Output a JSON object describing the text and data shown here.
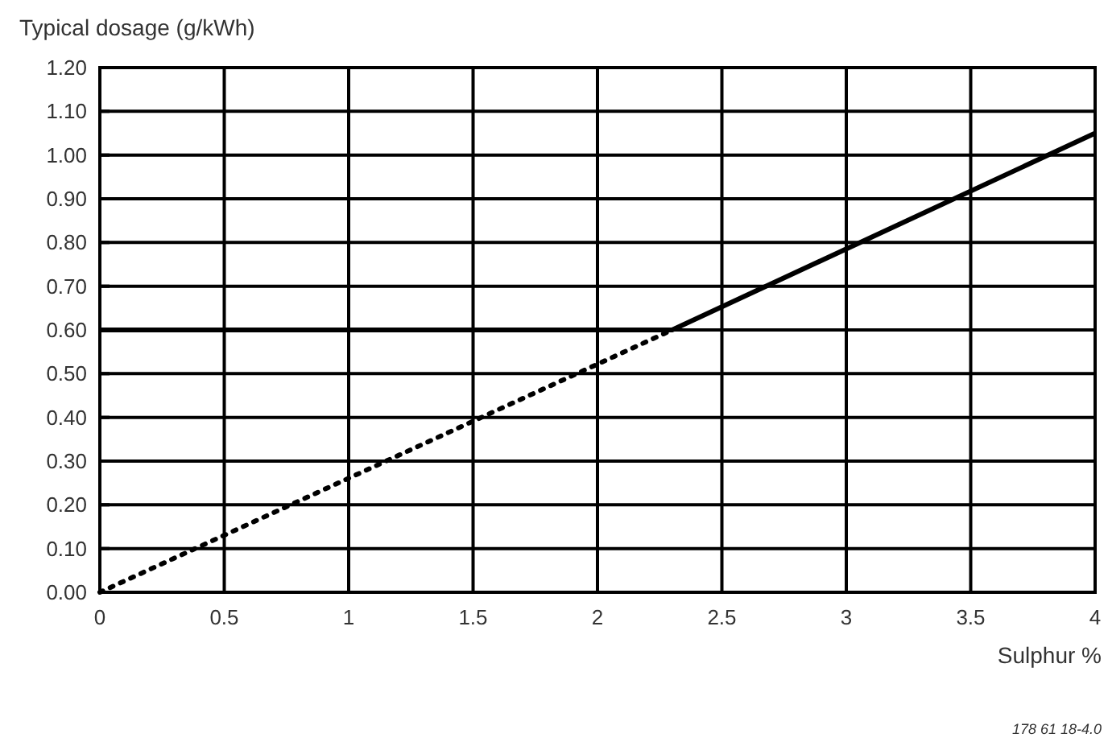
{
  "chart_data": {
    "type": "line",
    "ylabel": "Typical dosage (g/kWh)",
    "xlabel": "Sulphur %",
    "annotations": [
      "178 61 18-4.0"
    ],
    "xlim": [
      0,
      4
    ],
    "xticks": [
      0,
      0.5,
      1,
      1.5,
      2,
      2.5,
      3,
      3.5,
      4
    ],
    "ylim": [
      0,
      1.2
    ],
    "yticks": [
      {
        "value": 0,
        "label": "0.00"
      },
      {
        "value": 0.1,
        "label": "0.10"
      },
      {
        "value": 0.2,
        "label": "0.20"
      },
      {
        "value": 0.3,
        "label": "0.30"
      },
      {
        "value": 0.4,
        "label": "0.40"
      },
      {
        "value": 0.5,
        "label": "0.50"
      },
      {
        "value": 0.6,
        "label": "0.60"
      },
      {
        "value": 0.7,
        "label": "0.70"
      },
      {
        "value": 0.8,
        "label": "0.80"
      },
      {
        "value": 0.9,
        "label": "0.90"
      },
      {
        "value": 1,
        "label": "1.00"
      },
      {
        "value": 1.1,
        "label": "1.10"
      },
      {
        "value": 1.2,
        "label": "1.20"
      }
    ],
    "grid": true,
    "series": [
      {
        "color": "#000000",
        "line_style": "solid",
        "x": [
          0,
          2.3,
          4
        ],
        "values": [
          0.6,
          0.6,
          1.05
        ]
      },
      {
        "color": "#000000",
        "line_style": "dotted",
        "x": [
          0,
          2.3
        ],
        "values": [
          0,
          0.6
        ]
      }
    ]
  }
}
